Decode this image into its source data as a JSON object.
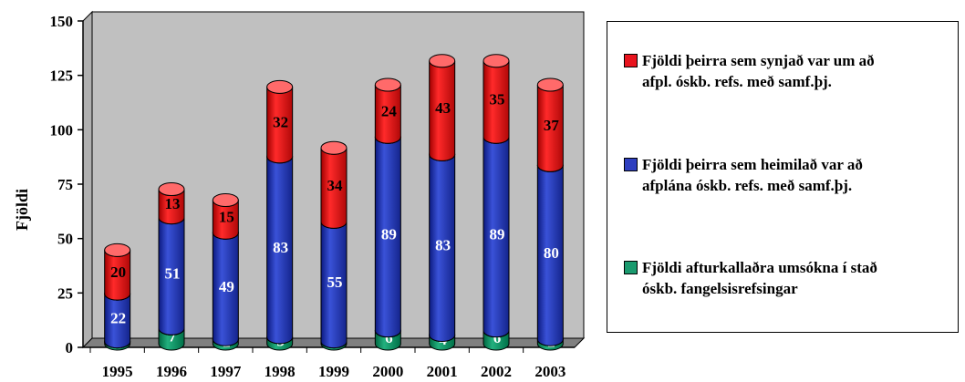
{
  "chart_data": {
    "type": "bar",
    "stacked": true,
    "style": "3d-cylinder",
    "categories": [
      "1995",
      "1996",
      "1997",
      "1998",
      "1999",
      "2000",
      "2001",
      "2002",
      "2003"
    ],
    "series": [
      {
        "name": "Fjöldi afturkallaðra umsókna í stað óskb. fangelsisrefsingar",
        "color": "#1a9a6e",
        "label_color": "#ffffff",
        "values": [
          1,
          7,
          2,
          3,
          1,
          6,
          4,
          6,
          2
        ]
      },
      {
        "name": "Fjöldi þeirra sem heimilað var að afplána óskb. refs. með samf.þj.",
        "color": "#2e3fbf",
        "label_color": "#ffffff",
        "values": [
          22,
          51,
          49,
          83,
          55,
          89,
          83,
          89,
          80
        ]
      },
      {
        "name": "Fjöldi þeirra sem synjað var um að afpl. óskb. refs. með samf.þj.",
        "color": "#e8141e",
        "label_color": "#000000",
        "values": [
          20,
          13,
          15,
          32,
          34,
          24,
          43,
          35,
          37
        ]
      }
    ],
    "ylabel": "Fjöldi",
    "ylim": [
      0,
      150
    ],
    "yticks": [
      0,
      25,
      50,
      75,
      100,
      125,
      150
    ],
    "grid": false,
    "legend": "right",
    "plot_background": "#c0c0c0"
  },
  "legend": {
    "items": [
      {
        "label_lines": [
          "Fjöldi þeirra sem synjað var um að",
          "afpl. óskb. refs. með samf.þj."
        ],
        "color": "#e8141e"
      },
      {
        "label_lines": [
          "Fjöldi þeirra sem heimilað var að",
          "afplána óskb. refs. með samf.þj."
        ],
        "color": "#2e3fbf"
      },
      {
        "label_lines": [
          "Fjöldi afturkallaðra umsókna í stað",
          "óskb. fangelsisrefsingar"
        ],
        "color": "#1a9a6e"
      }
    ]
  }
}
